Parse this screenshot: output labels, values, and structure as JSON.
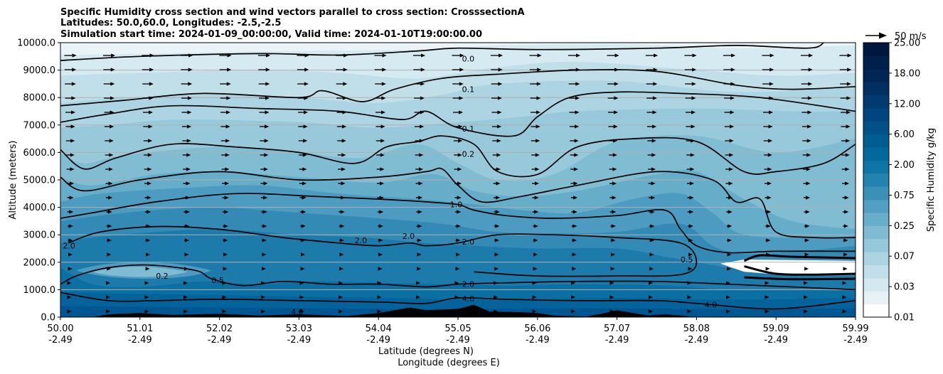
{
  "chart_data": {
    "type": "contour",
    "title_lines": [
      "Specific Humidity cross section and wind vectors parallel to cross section: CrosssectionA",
      "Latitudes: 50.0,60.0, Longitudes: -2.5,-2.5",
      "Simulation start time: 2024-01-09_00:00:00, Valid time: 2024-01-10T19:00:00.00"
    ],
    "ylabel": "Altitude (meters)",
    "xlabel_lat": "Latitude (degrees N)",
    "xlabel_lon": "Longitude (degrees E)",
    "ylim": [
      0,
      10000
    ],
    "y_ticks": [
      "0.0",
      "1000.0",
      "2000.0",
      "3000.0",
      "4000.0",
      "5000.0",
      "6000.0",
      "7000.0",
      "8000.0",
      "9000.0",
      "10000.0"
    ],
    "x_ticks": [
      {
        "lat": "50.00",
        "lon": "-2.49"
      },
      {
        "lat": "51.01",
        "lon": "-2.49"
      },
      {
        "lat": "52.02",
        "lon": "-2.49"
      },
      {
        "lat": "53.03",
        "lon": "-2.49"
      },
      {
        "lat": "54.04",
        "lon": "-2.49"
      },
      {
        "lat": "55.05",
        "lon": "-2.49"
      },
      {
        "lat": "56.06",
        "lon": "-2.49"
      },
      {
        "lat": "57.07",
        "lon": "-2.49"
      },
      {
        "lat": "58.08",
        "lon": "-2.49"
      },
      {
        "lat": "59.09",
        "lon": "-2.49"
      },
      {
        "lat": "59.99",
        "lon": "-2.49"
      }
    ],
    "y_grid": true,
    "colorbar": {
      "label": "Specific Humidity g/kg",
      "ticks": [
        "0.01",
        "0.03",
        "0.07",
        "0.25",
        "0.75",
        "2.00",
        "6.00",
        "12.00",
        "18.00",
        "25.00"
      ],
      "colors": [
        "#ffffff",
        "#e7f1f6",
        "#d4e8f0",
        "#c1dfea",
        "#acd4e3",
        "#96c8db",
        "#7fbbd3",
        "#68aecb",
        "#519fc2",
        "#3990b9",
        "#2382b0",
        "#0f74a6",
        "#03689c",
        "#005d92",
        "#005188",
        "#00457d",
        "#003a70",
        "#002f62",
        "#002656",
        "#001f4b",
        "#00183f"
      ]
    },
    "quiver_key": "50 m/s",
    "contour_labels": [
      {
        "text": "0.0",
        "x_frac": 0.505,
        "y_m": 9420
      },
      {
        "text": "0.1",
        "x_frac": 0.505,
        "y_m": 8300
      },
      {
        "text": "0.1",
        "x_frac": 0.505,
        "y_m": 6870
      },
      {
        "text": "0.2",
        "x_frac": 0.505,
        "y_m": 5940
      },
      {
        "text": "1.0",
        "x_frac": 0.49,
        "y_m": 4100
      },
      {
        "text": "2.0",
        "x_frac": 0.505,
        "y_m": 2740
      },
      {
        "text": "2.0",
        "x_frac": 0.505,
        "y_m": 1200
      },
      {
        "text": "4.0",
        "x_frac": 0.505,
        "y_m": 680
      },
      {
        "text": "2.0",
        "x_frac": 0.003,
        "y_m": 2600
      },
      {
        "text": "0.2",
        "x_frac": 0.12,
        "y_m": 1500
      },
      {
        "text": "0.5",
        "x_frac": 0.19,
        "y_m": 1350
      },
      {
        "text": "2.0",
        "x_frac": 0.37,
        "y_m": 2800
      },
      {
        "text": "2.0",
        "x_frac": 0.43,
        "y_m": 2950
      },
      {
        "text": "0.5",
        "x_frac": 0.78,
        "y_m": 2100
      },
      {
        "text": "4.0",
        "x_frac": 0.81,
        "y_m": 450
      },
      {
        "text": "4.0",
        "x_frac": 0.29,
        "y_m": 200
      }
    ]
  }
}
